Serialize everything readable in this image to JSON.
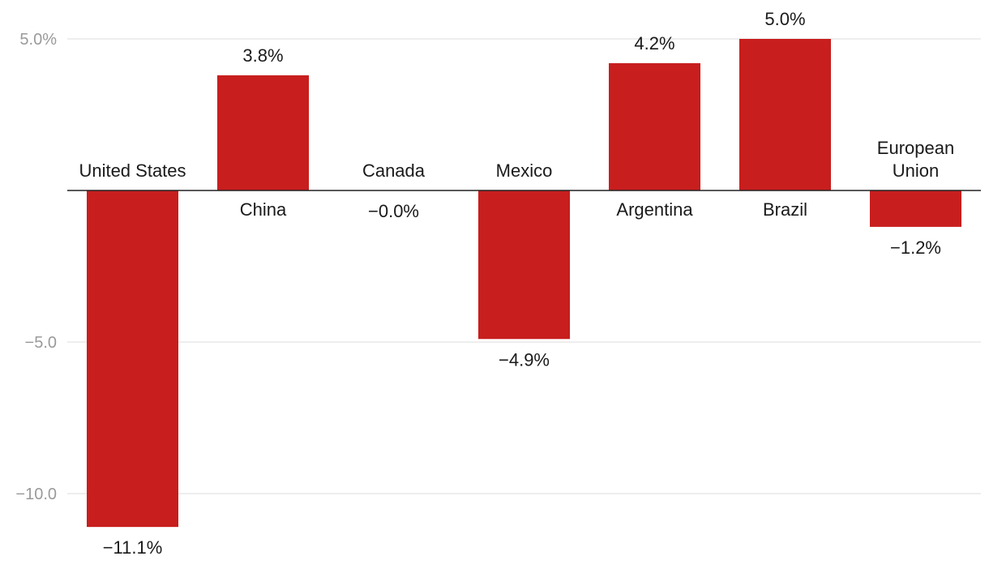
{
  "chart_data": {
    "type": "bar",
    "categories": [
      "United States",
      "China",
      "Canada",
      "Mexico",
      "Argentina",
      "Brazil",
      "European Union"
    ],
    "category_lines": [
      [
        "United States"
      ],
      [
        "China"
      ],
      [
        "Canada"
      ],
      [
        "Mexico"
      ],
      [
        "Argentina"
      ],
      [
        "Brazil"
      ],
      [
        "European",
        "Union"
      ]
    ],
    "values": [
      -11.1,
      3.8,
      -0.0,
      -4.9,
      4.2,
      5.0,
      -1.2
    ],
    "value_labels": [
      "−11.1%",
      "3.8%",
      "−0.0%",
      "−4.9%",
      "4.2%",
      "5.0%",
      "−1.2%"
    ],
    "yticks": [
      5.0,
      -5.0,
      -10.0
    ],
    "ytick_labels": [
      "5.0%",
      "−5.0",
      "−10.0"
    ],
    "ylim": [
      -11.6,
      5.3
    ],
    "bar_color": "#c81e1e",
    "title": "",
    "xlabel": "",
    "ylabel": "",
    "grid": true,
    "legend": "none"
  }
}
